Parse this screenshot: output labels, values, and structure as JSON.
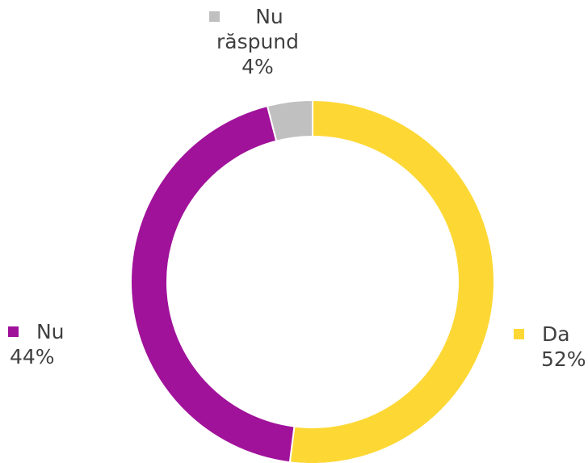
{
  "chart_data": {
    "type": "pie",
    "variant": "donut",
    "title": "",
    "legend": "none",
    "slices": [
      {
        "name": "Da",
        "value": 52,
        "value_label": "52%",
        "color": "#FDD835"
      },
      {
        "name": "Nu",
        "value": 44,
        "value_label": "44%",
        "color": "#A0129A"
      },
      {
        "name_lines": [
          "Nu",
          "răspund"
        ],
        "value": 4,
        "value_label": "4%",
        "color": "#C0C0C0"
      }
    ]
  }
}
